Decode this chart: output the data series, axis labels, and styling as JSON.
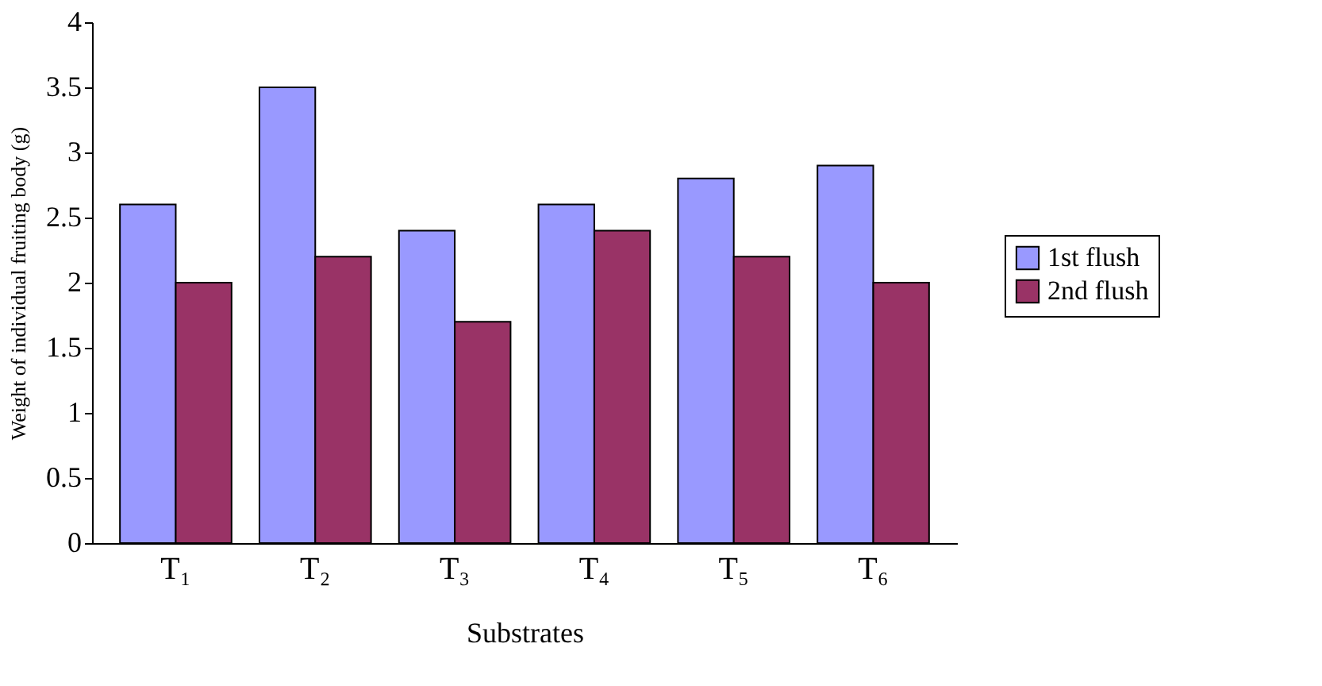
{
  "chart_data": {
    "type": "bar",
    "xlabel": "Substrates",
    "ylabel": "Weight of individual fruiting body (g)",
    "categories": [
      "T₁",
      "T₂",
      "T₃",
      "T₄",
      "T₅",
      "T₆"
    ],
    "series": [
      {
        "name": "1st flush",
        "color": "#9999ff",
        "values": [
          2.6,
          3.5,
          2.4,
          2.6,
          2.8,
          2.9
        ]
      },
      {
        "name": "2nd flush",
        "color": "#993366",
        "values": [
          2.0,
          2.2,
          1.7,
          2.4,
          2.2,
          2.0
        ]
      }
    ],
    "ylim": [
      0,
      4
    ],
    "yticks": [
      0,
      0.5,
      1,
      1.5,
      2,
      2.5,
      3,
      3.5,
      4
    ],
    "grid": false,
    "legend": "right"
  }
}
